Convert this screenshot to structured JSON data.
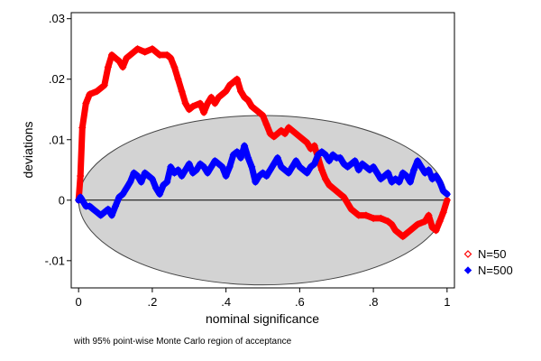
{
  "chart_data": {
    "type": "line",
    "xlabel": "nominal significance",
    "ylabel": "deviations",
    "note": "with 95% point-wise Monte Carlo region of acceptance",
    "xlim": [
      -0.02,
      1.02
    ],
    "ylim": [
      -0.0145,
      0.031
    ],
    "xticks": [
      0,
      0.2,
      0.4,
      0.6,
      0.8,
      1
    ],
    "xtick_labels": [
      "0",
      ".2",
      ".4",
      ".6",
      ".8",
      "1"
    ],
    "yticks": [
      -0.01,
      0,
      0.01,
      0.02,
      0.03
    ],
    "ytick_labels": [
      "-.01",
      "0",
      ".01",
      ".02",
      ".03"
    ],
    "grid": false,
    "legend_position": "right",
    "acceptance_region": {
      "center_x": 0.5,
      "half_width_x": 0.5,
      "half_height_y": 0.014,
      "color": "#d3d3d3"
    },
    "series": [
      {
        "name": "N=50",
        "color": "#ff0000",
        "marker": "hollow-diamond",
        "x": [
          0,
          0.005,
          0.01,
          0.02,
          0.03,
          0.05,
          0.07,
          0.08,
          0.09,
          0.1,
          0.11,
          0.12,
          0.13,
          0.15,
          0.16,
          0.18,
          0.2,
          0.22,
          0.24,
          0.25,
          0.26,
          0.27,
          0.28,
          0.29,
          0.3,
          0.31,
          0.33,
          0.34,
          0.35,
          0.36,
          0.37,
          0.38,
          0.39,
          0.4,
          0.41,
          0.42,
          0.43,
          0.44,
          0.45,
          0.46,
          0.47,
          0.48,
          0.49,
          0.5,
          0.51,
          0.52,
          0.53,
          0.55,
          0.56,
          0.57,
          0.58,
          0.6,
          0.62,
          0.63,
          0.64,
          0.65,
          0.66,
          0.67,
          0.68,
          0.7,
          0.72,
          0.74,
          0.75,
          0.76,
          0.78,
          0.8,
          0.82,
          0.84,
          0.85,
          0.86,
          0.88,
          0.9,
          0.92,
          0.94,
          0.95,
          0.96,
          0.97,
          0.98,
          0.99,
          1.0
        ],
        "y": [
          0,
          0.004,
          0.012,
          0.016,
          0.0175,
          0.018,
          0.019,
          0.022,
          0.024,
          0.0235,
          0.023,
          0.022,
          0.0235,
          0.0245,
          0.025,
          0.0245,
          0.025,
          0.024,
          0.024,
          0.0235,
          0.022,
          0.02,
          0.018,
          0.016,
          0.015,
          0.0155,
          0.016,
          0.0145,
          0.016,
          0.017,
          0.016,
          0.017,
          0.0175,
          0.018,
          0.019,
          0.0195,
          0.02,
          0.018,
          0.017,
          0.0165,
          0.0155,
          0.015,
          0.0145,
          0.014,
          0.0125,
          0.011,
          0.0105,
          0.0115,
          0.011,
          0.012,
          0.0115,
          0.0105,
          0.0095,
          0.0085,
          0.009,
          0.007,
          0.005,
          0.0035,
          0.0025,
          0.0015,
          0.0005,
          -0.0015,
          -0.002,
          -0.0025,
          -0.0025,
          -0.003,
          -0.003,
          -0.0035,
          -0.004,
          -0.005,
          -0.006,
          -0.005,
          -0.004,
          -0.0035,
          -0.0025,
          -0.0045,
          -0.005,
          -0.0035,
          -0.002,
          0
        ]
      },
      {
        "name": "N=500",
        "color": "#0000ff",
        "marker": "filled-diamond",
        "x": [
          0,
          0.005,
          0.01,
          0.02,
          0.03,
          0.04,
          0.05,
          0.06,
          0.07,
          0.08,
          0.09,
          0.1,
          0.11,
          0.12,
          0.13,
          0.14,
          0.15,
          0.16,
          0.17,
          0.18,
          0.19,
          0.2,
          0.21,
          0.22,
          0.23,
          0.24,
          0.25,
          0.26,
          0.27,
          0.28,
          0.29,
          0.3,
          0.31,
          0.32,
          0.33,
          0.34,
          0.35,
          0.36,
          0.37,
          0.38,
          0.39,
          0.4,
          0.41,
          0.42,
          0.43,
          0.44,
          0.45,
          0.46,
          0.47,
          0.48,
          0.49,
          0.5,
          0.51,
          0.52,
          0.53,
          0.54,
          0.55,
          0.56,
          0.57,
          0.58,
          0.59,
          0.6,
          0.61,
          0.62,
          0.63,
          0.64,
          0.65,
          0.66,
          0.67,
          0.68,
          0.69,
          0.7,
          0.71,
          0.72,
          0.73,
          0.74,
          0.75,
          0.76,
          0.77,
          0.78,
          0.79,
          0.8,
          0.81,
          0.82,
          0.83,
          0.84,
          0.85,
          0.86,
          0.87,
          0.88,
          0.89,
          0.9,
          0.91,
          0.92,
          0.93,
          0.94,
          0.95,
          0.96,
          0.97,
          0.98,
          0.99,
          1.0
        ],
        "y": [
          0,
          0.0005,
          0,
          -0.001,
          -0.001,
          -0.0015,
          -0.002,
          -0.0025,
          -0.002,
          -0.0015,
          -0.0025,
          -0.001,
          0.0005,
          0.001,
          0.002,
          0.003,
          0.0045,
          0.004,
          0.003,
          0.0045,
          0.004,
          0.0035,
          0.002,
          0.001,
          0.0025,
          0.003,
          0.0055,
          0.0045,
          0.005,
          0.004,
          0.005,
          0.006,
          0.0045,
          0.005,
          0.006,
          0.0055,
          0.0045,
          0.0055,
          0.0065,
          0.006,
          0.0055,
          0.004,
          0.0055,
          0.0075,
          0.008,
          0.007,
          0.009,
          0.007,
          0.0055,
          0.003,
          0.004,
          0.0045,
          0.004,
          0.005,
          0.006,
          0.007,
          0.0055,
          0.005,
          0.0045,
          0.0055,
          0.0065,
          0.0055,
          0.005,
          0.0045,
          0.0055,
          0.006,
          0.0075,
          0.008,
          0.0075,
          0.0065,
          0.0075,
          0.007,
          0.007,
          0.006,
          0.0055,
          0.006,
          0.0065,
          0.005,
          0.006,
          0.0055,
          0.005,
          0.0055,
          0.0045,
          0.0035,
          0.004,
          0.0045,
          0.003,
          0.0035,
          0.003,
          0.0045,
          0.004,
          0.003,
          0.005,
          0.0065,
          0.0055,
          0.0045,
          0.005,
          0.0035,
          0.004,
          0.003,
          0.0015,
          0.001
        ]
      }
    ]
  }
}
